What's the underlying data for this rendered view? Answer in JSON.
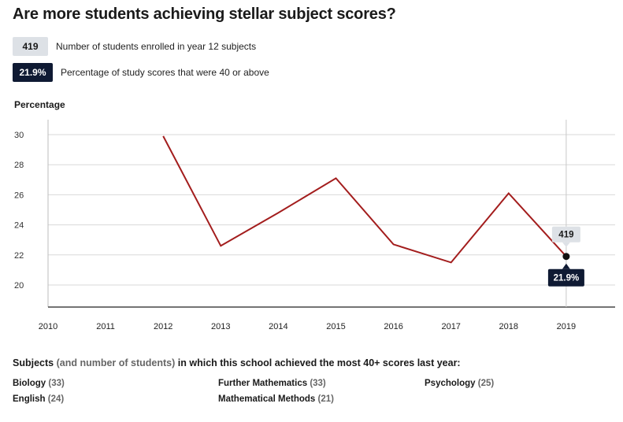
{
  "title": "Are more students achieving stellar subject scores?",
  "legend": {
    "enrolled": {
      "badge": "419",
      "text": "Number of students enrolled in year 12 subjects"
    },
    "percentage": {
      "badge": "21.9%",
      "text": "Percentage of study scores that were 40 or above"
    }
  },
  "colors": {
    "line": "#a31d1d",
    "dark_badge": "#0f1a33",
    "light_badge": "#dde1e6",
    "grid": "#d9d9d9"
  },
  "chart_data": {
    "type": "line",
    "ylabel": "Percentage",
    "xlabel": "",
    "x": [
      "2010",
      "2011",
      "2012",
      "2013",
      "2014",
      "2015",
      "2016",
      "2017",
      "2018",
      "2019"
    ],
    "series": [
      {
        "values": [
          null,
          null,
          29.9,
          22.6,
          24.8,
          27.1,
          22.7,
          21.5,
          26.1,
          21.9
        ]
      }
    ],
    "yticks": [
      20,
      22,
      24,
      26,
      28,
      30
    ],
    "ylim": [
      18.5,
      31
    ],
    "grid": true,
    "highlight": {
      "x": "2019",
      "top_label": "419",
      "bottom_label": "21.9%"
    }
  },
  "subjects": {
    "heading_bold": "Subjects",
    "heading_muted": "(and number of students)",
    "heading_rest": "in which this school achieved the most 40+ scores last year:",
    "items": [
      {
        "name": "Biology",
        "count": "(33)"
      },
      {
        "name": "Further Mathematics",
        "count": "(33)"
      },
      {
        "name": "Psychology",
        "count": "(25)"
      },
      {
        "name": "English",
        "count": "(24)"
      },
      {
        "name": "Mathematical Methods",
        "count": "(21)"
      }
    ]
  }
}
